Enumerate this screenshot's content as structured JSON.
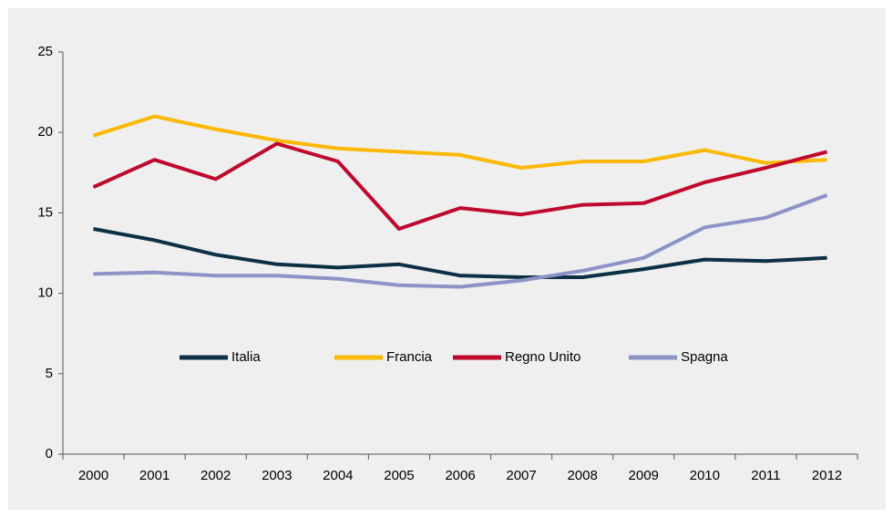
{
  "chart_data": {
    "type": "line",
    "categories": [
      "2000",
      "2001",
      "2002",
      "2003",
      "2004",
      "2005",
      "2006",
      "2007",
      "2008",
      "2009",
      "2010",
      "2011",
      "2012"
    ],
    "series": [
      {
        "name": "Italia",
        "color": "#0d3045",
        "values": [
          14.0,
          13.3,
          12.4,
          11.8,
          11.6,
          11.8,
          11.1,
          11.0,
          11.0,
          11.5,
          12.1,
          12.0,
          12.2
        ]
      },
      {
        "name": "Francia",
        "color": "#fbb800",
        "values": [
          19.8,
          21.0,
          20.2,
          19.5,
          19.0,
          18.8,
          18.6,
          17.8,
          18.2,
          18.2,
          18.9,
          18.1,
          18.3
        ]
      },
      {
        "name": "Regno Unito",
        "color": "#c0082e",
        "values": [
          16.6,
          18.3,
          17.1,
          19.3,
          18.2,
          14.0,
          15.3,
          14.9,
          15.5,
          15.6,
          16.9,
          17.8,
          18.8
        ]
      },
      {
        "name": "Spagna",
        "color": "#8e93c7",
        "values": [
          11.2,
          11.3,
          11.1,
          11.1,
          10.9,
          10.5,
          10.4,
          10.8,
          11.4,
          12.2,
          14.1,
          14.7,
          16.1
        ]
      }
    ],
    "ylim": [
      0,
      25
    ],
    "yticks": [
      0,
      5,
      10,
      15,
      20,
      25
    ],
    "grid": false
  }
}
